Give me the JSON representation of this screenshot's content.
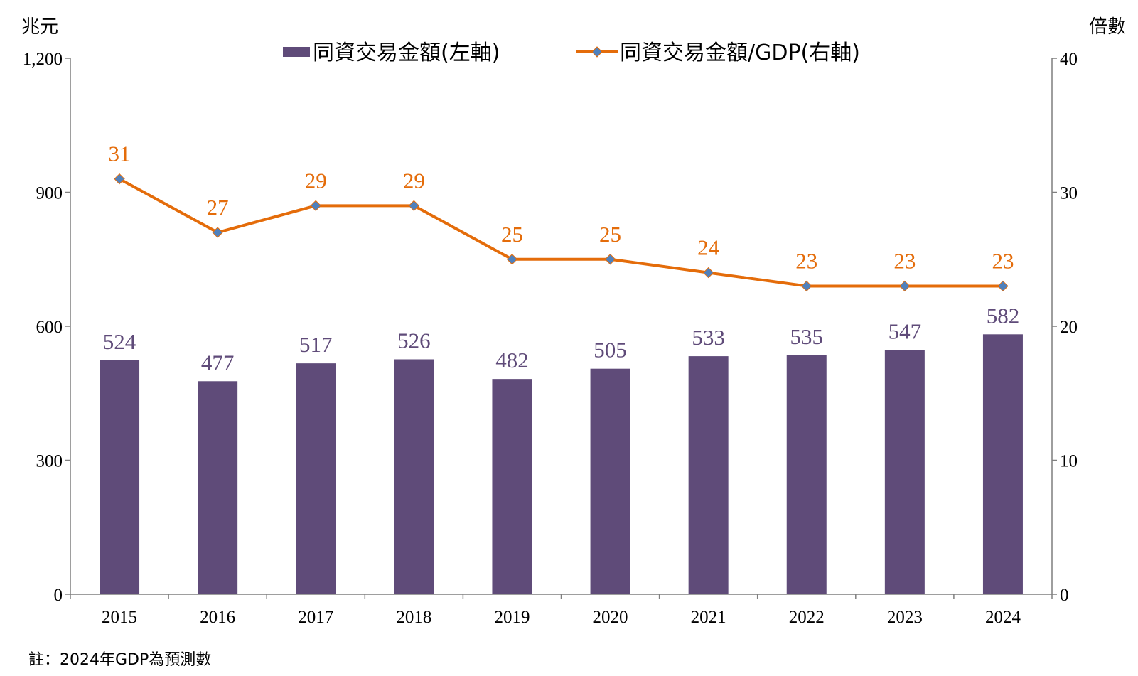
{
  "chart_data": {
    "type": "bar",
    "categories": [
      "2015",
      "2016",
      "2017",
      "2018",
      "2019",
      "2020",
      "2021",
      "2022",
      "2023",
      "2024"
    ],
    "series": [
      {
        "name": "同資交易金額(左軸)",
        "type": "bar",
        "axis": "left",
        "values": [
          524,
          477,
          517,
          526,
          482,
          505,
          533,
          535,
          547,
          582
        ]
      },
      {
        "name": "同資交易金額/GDP(右軸)",
        "type": "line",
        "axis": "right",
        "values": [
          31,
          27,
          29,
          29,
          25,
          25,
          24,
          23,
          23,
          23
        ]
      }
    ],
    "ylabel_left": "兆元",
    "ylabel_right": "倍數",
    "ylim_left": [
      0,
      1200
    ],
    "yticks_left": [
      "0",
      "300",
      "600",
      "900",
      "1,200"
    ],
    "ylim_right": [
      0,
      40
    ],
    "yticks_right": [
      "0",
      "10",
      "20",
      "30",
      "40"
    ],
    "grid": false,
    "legend_position": "top-center",
    "note": "註：2024年GDP為預測數",
    "colors": {
      "bar": "#5f4b79",
      "line": "#e46c0a",
      "marker_fill": "#4f81bd",
      "bar_label": "#5f4b79",
      "line_label": "#e46c0a",
      "axis": "#7f7f7f"
    }
  }
}
